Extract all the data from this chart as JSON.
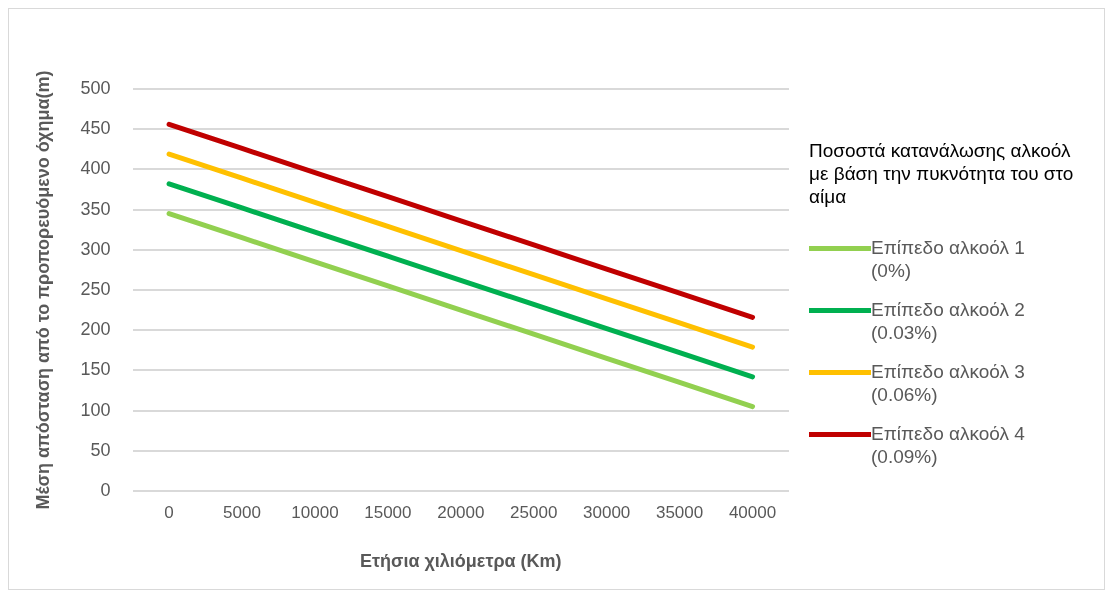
{
  "chart_data": {
    "type": "line",
    "xlabel": "Ετήσια χιλιόμετρα (Km)",
    "ylabel": "Μέση απόσταση από το προπορευόμενο όχημα(m)",
    "legend_title": "Ποσοστά κατανάλωσης αλκοόλ με βάση την πυκνότητα του στο αίμα",
    "categories": [
      "0",
      "5000",
      "10000",
      "15000",
      "20000",
      "25000",
      "30000",
      "35000",
      "40000"
    ],
    "series": [
      {
        "name": "Επίπεδο αλκοόλ 1 (0%)",
        "color": "#92d050",
        "values": [
          345,
          315,
          285,
          255,
          225,
          195,
          165,
          135,
          105
        ]
      },
      {
        "name": "Επίπεδο αλκοόλ 2 (0.03%)",
        "color": "#00b050",
        "values": [
          382,
          352,
          322,
          292,
          262,
          232,
          202,
          172,
          142
        ]
      },
      {
        "name": "Επίπεδο αλκοόλ 3 (0.06%)",
        "color": "#ffc000",
        "values": [
          419,
          389,
          359,
          329,
          299,
          269,
          239,
          209,
          179
        ]
      },
      {
        "name": "Επίπεδο αλκοόλ 4 (0.09%)",
        "color": "#c00000",
        "values": [
          456,
          426,
          396,
          366,
          336,
          306,
          276,
          246,
          216
        ]
      }
    ],
    "ylim": [
      0,
      500
    ],
    "yticks": [
      0,
      50,
      100,
      150,
      200,
      250,
      300,
      350,
      400,
      450,
      500
    ],
    "grid": "y",
    "legend": "right",
    "marker": "none",
    "line_style": "solid"
  }
}
